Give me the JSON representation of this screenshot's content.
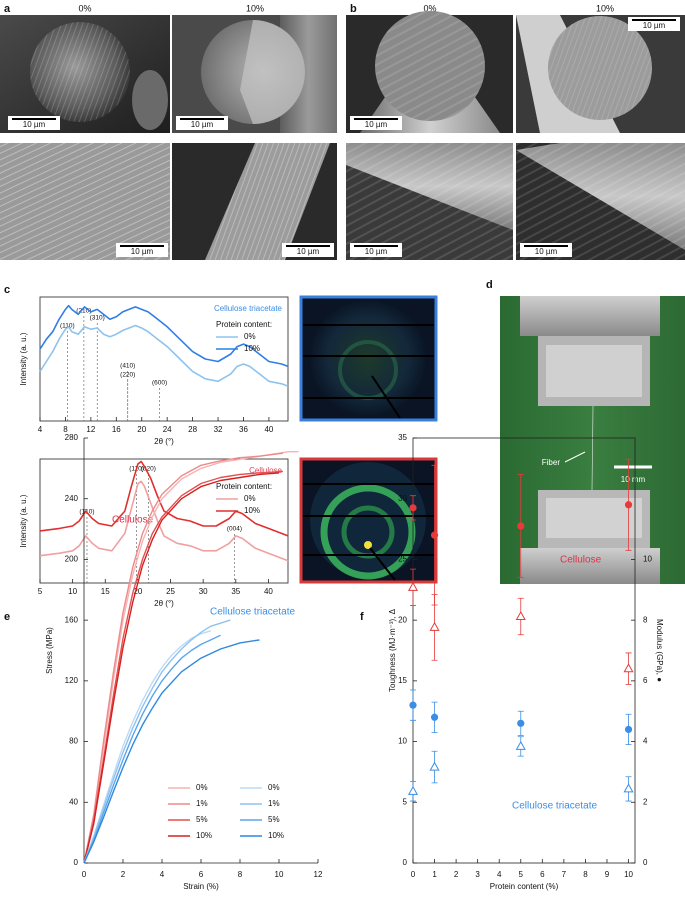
{
  "panels": {
    "a": {
      "label": "a",
      "captions": [
        "0%",
        "10%"
      ],
      "scale_bars": [
        "10 µm",
        "10 µm",
        "10 µm",
        "10 µm"
      ]
    },
    "b": {
      "label": "b",
      "captions": [
        "0%",
        "10%"
      ],
      "scale_bars": [
        "10 µm",
        "10 µm",
        "10 µm",
        "10 µm"
      ]
    },
    "c": {
      "label": "c"
    },
    "d": {
      "label": "d",
      "fiber": "Fiber",
      "scale_bar": "10 mm"
    },
    "e": {
      "label": "e"
    },
    "f": {
      "label": "f"
    }
  },
  "chart_data": [
    {
      "type": "line",
      "title": "Cellulose triacetate",
      "title_color": "#3a8ee6",
      "x_label": "2θ (°)",
      "y_label": "Intensity (a. u.)",
      "legend_title": "Protein content:",
      "xlim": [
        4,
        43
      ],
      "xticks": [
        4,
        8,
        12,
        16,
        20,
        24,
        28,
        32,
        36,
        40
      ],
      "ylim": [
        0,
        100
      ],
      "x": [
        4,
        5,
        6,
        7,
        8,
        8.5,
        9,
        10,
        11,
        12,
        13,
        14,
        15,
        16,
        17,
        18,
        19,
        20,
        21,
        22,
        24,
        26,
        28,
        30,
        32,
        34,
        35,
        36,
        37,
        38,
        40,
        42,
        43
      ],
      "series": [
        {
          "name": "0%",
          "color": "#8ec3ee",
          "values": [
            40,
            48,
            56,
            66,
            74,
            76,
            72,
            70,
            76,
            74,
            75,
            70,
            68,
            70,
            73,
            75,
            77,
            75,
            72,
            68,
            60,
            50,
            40,
            34,
            32,
            38,
            44,
            46,
            44,
            40,
            32,
            30,
            28
          ]
        },
        {
          "name": "10%",
          "color": "#2f7fe8",
          "values": [
            58,
            66,
            72,
            82,
            90,
            93,
            90,
            86,
            92,
            88,
            90,
            86,
            82,
            84,
            88,
            90,
            92,
            90,
            88,
            84,
            76,
            66,
            56,
            50,
            48,
            54,
            60,
            62,
            60,
            56,
            48,
            46,
            44
          ]
        }
      ],
      "annotations": [
        {
          "text": "(110)",
          "x": 8.3
        },
        {
          "text": "(210)",
          "x": 10.9
        },
        {
          "text": "(310)",
          "x": 13.0
        },
        {
          "text": "(410)",
          "x": 17.8
        },
        {
          "text": "(220)",
          "x": 17.8
        },
        {
          "text": "(600)",
          "x": 22.8
        }
      ]
    },
    {
      "type": "line",
      "title": "Cellulose",
      "title_color": "#e0405a",
      "x_label": "2θ (°)",
      "y_label": "Intensity (a. u.)",
      "legend_title": "Protein content:",
      "xlim": [
        5,
        43
      ],
      "xticks": [
        5,
        10,
        15,
        20,
        25,
        30,
        35,
        40
      ],
      "ylim": [
        0,
        100
      ],
      "x": [
        5,
        8,
        10,
        11,
        12,
        13,
        14,
        16,
        18,
        19,
        20,
        20.5,
        21,
        22,
        23,
        24,
        26,
        28,
        30,
        32,
        34,
        35,
        36,
        38,
        40,
        42,
        43
      ],
      "series": [
        {
          "name": "0%",
          "color": "#f0a0a0",
          "values": [
            22,
            24,
            26,
            30,
            38,
            32,
            28,
            26,
            40,
            60,
            80,
            82,
            78,
            64,
            50,
            38,
            32,
            30,
            26,
            26,
            32,
            38,
            36,
            28,
            24,
            20,
            18
          ]
        },
        {
          "name": "10%",
          "color": "#e03030",
          "values": [
            42,
            44,
            46,
            50,
            58,
            52,
            48,
            46,
            58,
            78,
            96,
            98,
            94,
            84,
            70,
            58,
            52,
            50,
            46,
            46,
            52,
            58,
            56,
            48,
            44,
            40,
            38
          ]
        }
      ],
      "annotations": [
        {
          "text": "(1̄10)",
          "x": 12.2
        },
        {
          "text": "(110)",
          "x": 19.8
        },
        {
          "text": "(020)",
          "x": 21.6
        },
        {
          "text": "(004)",
          "x": 34.8
        }
      ]
    },
    {
      "type": "line",
      "x_label": "Strain (%)",
      "y_label": "Stress (MPa)",
      "xlim": [
        0,
        12
      ],
      "xticks": [
        0,
        2,
        4,
        6,
        8,
        10,
        12
      ],
      "ylim": [
        0,
        280
      ],
      "yticks": [
        0,
        40,
        80,
        120,
        160,
        200,
        240,
        280
      ],
      "series": [
        {
          "name": "0%",
          "color": "#f7b3b3",
          "x": [
            0,
            0.5,
            1,
            1.5,
            2,
            2.5,
            3,
            3.5,
            4,
            5,
            6,
            7,
            8,
            9,
            10,
            10.5,
            11
          ],
          "values": [
            0,
            30,
            75,
            120,
            160,
            190,
            212,
            228,
            240,
            253,
            260,
            264,
            266,
            268,
            270,
            271,
            271
          ]
        },
        {
          "name": "1%",
          "color": "#ee8a8a",
          "x": [
            0,
            0.5,
            1,
            1.5,
            2,
            2.5,
            3,
            3.5,
            4,
            5,
            6,
            7,
            8,
            9,
            10.2
          ],
          "values": [
            0,
            32,
            80,
            125,
            165,
            195,
            217,
            232,
            243,
            255,
            262,
            265,
            267,
            268,
            270
          ]
        },
        {
          "name": "5%",
          "color": "#e35050",
          "x": [
            0,
            0.5,
            1,
            1.5,
            2,
            2.5,
            3,
            3.5,
            4,
            5,
            6,
            7,
            8,
            9,
            10.2
          ],
          "values": [
            0,
            28,
            68,
            110,
            148,
            178,
            200,
            217,
            228,
            242,
            250,
            254,
            256,
            257,
            258
          ]
        },
        {
          "name": "10%",
          "color": "#d62020",
          "x": [
            0,
            0.5,
            1,
            1.5,
            2,
            2.5,
            3,
            3.5,
            4,
            5,
            6,
            7,
            8,
            9,
            10
          ],
          "values": [
            0,
            26,
            65,
            105,
            142,
            172,
            196,
            213,
            226,
            240,
            248,
            252,
            254,
            256,
            257
          ]
        },
        {
          "name": "0%",
          "color": "#bcdaf5",
          "x": [
            0,
            0.5,
            1,
            1.5,
            2,
            2.5,
            3,
            3.5,
            4,
            4.5,
            5,
            5.5,
            6,
            6.5
          ],
          "values": [
            0,
            18,
            38,
            58,
            77,
            93,
            107,
            119,
            129,
            137,
            143,
            148,
            151,
            153
          ]
        },
        {
          "name": "1%",
          "color": "#90c2f0",
          "x": [
            0,
            0.5,
            1,
            1.5,
            2,
            2.5,
            3,
            3.5,
            4,
            4.5,
            5,
            5.5,
            6,
            6.5,
            7,
            7.5
          ],
          "values": [
            0,
            17,
            36,
            55,
            73,
            89,
            103,
            115,
            126,
            134,
            141,
            147,
            152,
            156,
            158,
            160
          ]
        },
        {
          "name": "5%",
          "color": "#5ba5ec",
          "x": [
            0,
            0.5,
            1,
            1.5,
            2,
            2.5,
            3,
            3.5,
            4,
            4.5,
            5,
            5.5,
            6,
            6.5,
            7
          ],
          "values": [
            0,
            15,
            33,
            51,
            68,
            84,
            98,
            110,
            120,
            128,
            135,
            140,
            144,
            147,
            150
          ]
        },
        {
          "name": "10%",
          "color": "#2f88e0",
          "x": [
            0,
            0.5,
            1,
            1.5,
            2,
            2.5,
            3,
            3.5,
            4,
            5,
            6,
            7,
            8,
            9
          ],
          "values": [
            0,
            14,
            30,
            47,
            63,
            78,
            91,
            102,
            112,
            126,
            135,
            141,
            145,
            147
          ]
        }
      ],
      "annotations": [
        {
          "text": "Cellulose",
          "color": "#e0304a"
        },
        {
          "text": "Cellulose triacetate",
          "color": "#3a8ee6"
        }
      ]
    },
    {
      "type": "scatter",
      "x_label": "Protein content (%)",
      "y_label": "Toughness (MJ·m⁻³), Δ",
      "y2_label": "Modulus (GPa), ●",
      "xlim": [
        0,
        10.3
      ],
      "xticks": [
        0,
        1,
        2,
        3,
        4,
        5,
        6,
        7,
        8,
        9,
        10
      ],
      "ylim": [
        0,
        35
      ],
      "yticks": [
        0,
        5,
        10,
        15,
        20,
        25,
        30,
        35
      ],
      "y2lim": [
        0,
        14
      ],
      "y2ticks": [
        0,
        2,
        4,
        6,
        8,
        10
      ],
      "x": [
        0,
        1,
        5,
        10
      ],
      "series": [
        {
          "marker": "circle",
          "axis": "y2",
          "color": "#e83a3a",
          "values": [
            11.7,
            10.8,
            11.1,
            11.8
          ],
          "errors": [
            0.4,
            2.3,
            1.7,
            1.5
          ]
        },
        {
          "marker": "triangle",
          "color": "#e83a3a",
          "values": [
            22.7,
            19.4,
            20.3,
            16.0
          ],
          "errors": [
            1.5,
            2.7,
            1.5,
            1.3
          ]
        },
        {
          "marker": "circle",
          "axis": "y2",
          "color": "#3a8ee6",
          "values": [
            5.2,
            4.8,
            4.6,
            4.4
          ],
          "errors": [
            0.5,
            0.5,
            0.4,
            0.5
          ]
        },
        {
          "marker": "triangle",
          "color": "#3a8ee6",
          "values": [
            5.9,
            7.9,
            9.6,
            6.1
          ],
          "errors": [
            0.8,
            1.3,
            0.8,
            1.0
          ]
        }
      ],
      "annotations": [
        {
          "text": "Cellulose",
          "color": "#e0304a"
        },
        {
          "text": "Cellulose triacetate",
          "color": "#3a8ee6"
        }
      ]
    }
  ]
}
